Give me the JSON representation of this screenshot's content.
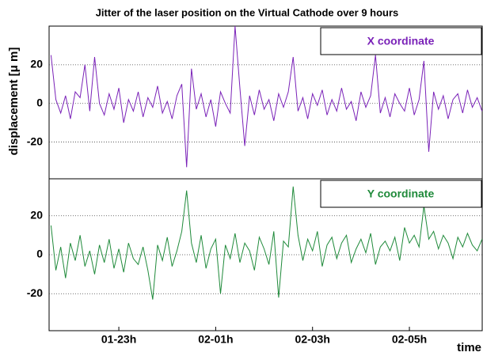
{
  "chart_data": [
    {
      "type": "line",
      "title": "Jitter of the laser position on the Virtual Cathode over 9 hours",
      "ylabel": "displacement [μ m]",
      "x": [
        21.6,
        21.7,
        21.8,
        21.9,
        22,
        22.1,
        22.2,
        22.3,
        22.4,
        22.5,
        22.6,
        22.7,
        22.8,
        22.9,
        23,
        23.1,
        23.2,
        23.3,
        23.4,
        23.5,
        23.6,
        23.7,
        23.8,
        23.9,
        24,
        24.1,
        24.2,
        24.3,
        24.4,
        24.5,
        24.6,
        24.7,
        24.8,
        24.9,
        25,
        25.1,
        25.2,
        25.3,
        25.4,
        25.5,
        25.6,
        25.7,
        25.8,
        25.9,
        26,
        26.1,
        26.2,
        26.3,
        26.4,
        26.5,
        26.6,
        26.7,
        26.8,
        26.9,
        27,
        27.1,
        27.2,
        27.3,
        27.4,
        27.5,
        27.6,
        27.7,
        27.8,
        27.9,
        28,
        28.1,
        28.2,
        28.3,
        28.4,
        28.5,
        28.6,
        28.7,
        28.8,
        28.9,
        29,
        29.1,
        29.2,
        29.3,
        29.4,
        29.5,
        29.6,
        29.7,
        29.8,
        29.9,
        30,
        30.1,
        30.2,
        30.3,
        30.4,
        30.5
      ],
      "series": [
        {
          "name": "X coordinate",
          "color": "#7a22b8",
          "values": [
            25,
            2,
            -5,
            4,
            -8,
            6,
            3,
            20,
            -4,
            24,
            0,
            -6,
            5,
            -3,
            8,
            -10,
            2,
            -4,
            6,
            -7,
            3,
            -2,
            9,
            -5,
            1,
            -8,
            4,
            10,
            -33,
            18,
            -3,
            5,
            -7,
            2,
            -12,
            6,
            0,
            -5,
            40,
            8,
            -22,
            4,
            -6,
            7,
            -3,
            2,
            -9,
            5,
            -2,
            6,
            24,
            -4,
            3,
            -8,
            5,
            -1,
            7,
            -6,
            2,
            -4,
            8,
            -3,
            1,
            -9,
            6,
            -2,
            4,
            25,
            -5,
            3,
            -7,
            5,
            0,
            -4,
            8,
            -6,
            2,
            22,
            -25,
            6,
            -3,
            4,
            -8,
            2,
            5,
            -5,
            7,
            -2,
            3,
            -4
          ]
        }
      ],
      "xlim": [
        21.56,
        30.52
      ],
      "ylim": [
        -39,
        40
      ],
      "yticks": [
        -20,
        0,
        20
      ],
      "grid": true
    },
    {
      "type": "line",
      "xlabel": "time",
      "x": [
        21.6,
        21.7,
        21.8,
        21.9,
        22,
        22.1,
        22.2,
        22.3,
        22.4,
        22.5,
        22.6,
        22.7,
        22.8,
        22.9,
        23,
        23.1,
        23.2,
        23.3,
        23.4,
        23.5,
        23.6,
        23.7,
        23.8,
        23.9,
        24,
        24.1,
        24.2,
        24.3,
        24.4,
        24.5,
        24.6,
        24.7,
        24.8,
        24.9,
        25,
        25.1,
        25.2,
        25.3,
        25.4,
        25.5,
        25.6,
        25.7,
        25.8,
        25.9,
        26,
        26.1,
        26.2,
        26.3,
        26.4,
        26.5,
        26.6,
        26.7,
        26.8,
        26.9,
        27,
        27.1,
        27.2,
        27.3,
        27.4,
        27.5,
        27.6,
        27.7,
        27.8,
        27.9,
        28,
        28.1,
        28.2,
        28.3,
        28.4,
        28.5,
        28.6,
        28.7,
        28.8,
        28.9,
        29,
        29.1,
        29.2,
        29.3,
        29.4,
        29.5,
        29.6,
        29.7,
        29.8,
        29.9,
        30,
        30.1,
        30.2,
        30.3,
        30.4,
        30.5
      ],
      "series": [
        {
          "name": "Y coordinate",
          "color": "#1f8a3a",
          "values": [
            15,
            -8,
            4,
            -12,
            6,
            -3,
            10,
            -6,
            2,
            -10,
            5,
            -4,
            8,
            -7,
            3,
            -9,
            6,
            -2,
            -5,
            4,
            -8,
            -23,
            5,
            -3,
            9,
            -6,
            2,
            12,
            33,
            6,
            -4,
            10,
            -7,
            3,
            8,
            -20,
            5,
            -2,
            11,
            -4,
            6,
            2,
            -8,
            9,
            3,
            -5,
            12,
            -22,
            7,
            4,
            35,
            10,
            -3,
            8,
            2,
            12,
            -6,
            5,
            9,
            -2,
            6,
            10,
            -4,
            3,
            8,
            1,
            11,
            -5,
            4,
            7,
            2,
            9,
            -3,
            14,
            6,
            10,
            4,
            25,
            8,
            12,
            3,
            10,
            6,
            -2,
            9,
            4,
            11,
            5,
            2,
            8
          ]
        }
      ],
      "xlim": [
        21.56,
        30.52
      ],
      "ylim": [
        -39,
        39
      ],
      "yticks": [
        -20,
        0,
        20
      ],
      "grid": true,
      "xticks": [
        {
          "value": 23,
          "label": "01-23h"
        },
        {
          "value": 25,
          "label": "02-01h"
        },
        {
          "value": 27,
          "label": "02-03h"
        },
        {
          "value": 29,
          "label": "02-05h"
        }
      ]
    }
  ]
}
